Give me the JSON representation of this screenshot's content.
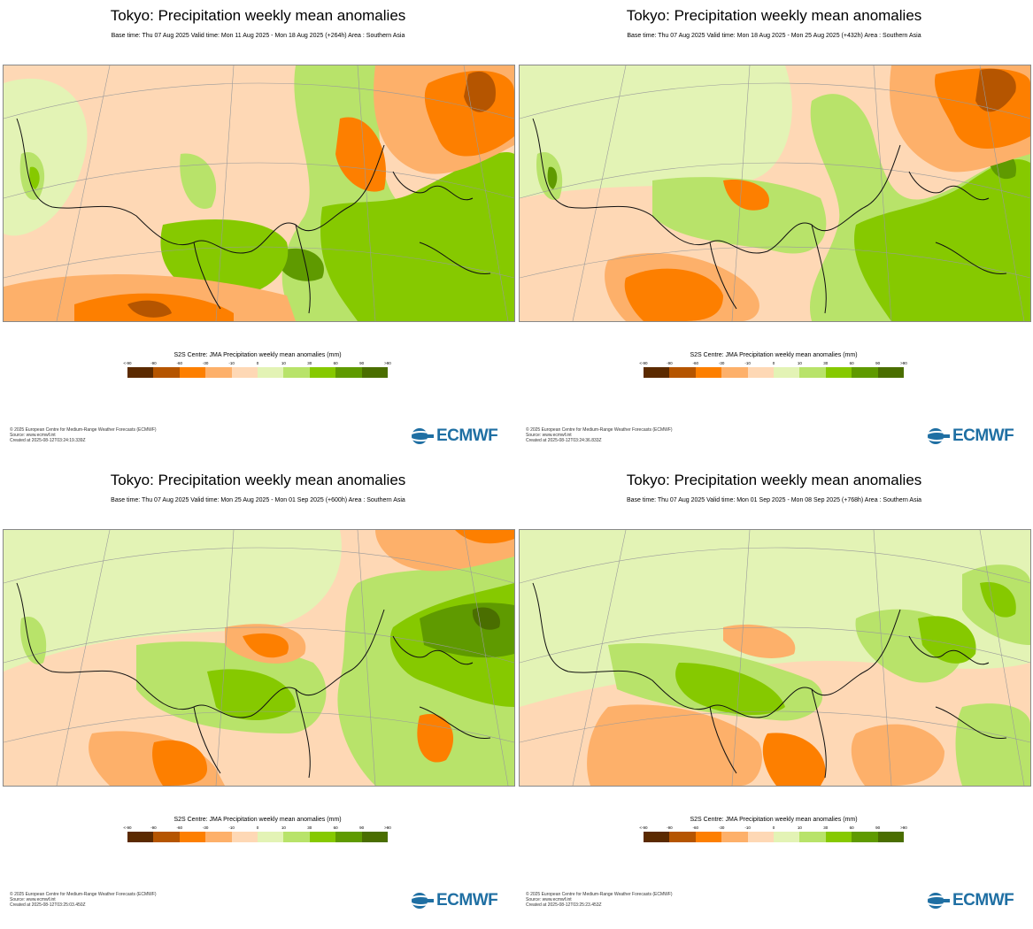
{
  "colors": {
    "scale": [
      "#5b2a00",
      "#b55500",
      "#fd7f00",
      "#fdb06a",
      "#fed8b5",
      "#e3f3b5",
      "#b8e36a",
      "#86c900",
      "#5f9a00",
      "#4a6e00"
    ],
    "coast": "#111111",
    "border": "#8a5c50",
    "grid": "#9a9a9a",
    "brand": "#1f6fa3"
  },
  "legend": {
    "title": "S2S Centre: JMA Precipitation weekly mean anomalies (mm)",
    "ticks": [
      "<-90",
      "-90",
      "-60",
      "-30",
      "-10",
      "0",
      "10",
      "30",
      "60",
      "90",
      ">90"
    ]
  },
  "logo": {
    "text": "ECMWF",
    "icon": "ecmwf-globe-icon"
  },
  "panels": [
    {
      "title": "Tokyo: Precipitation weekly mean anomalies",
      "subtitle": "Base time: Thu 07 Aug 2025 Valid time: Mon 11 Aug 2025 - Mon 18 Aug 2025 (+264h) Area : Southern Asia",
      "footer": [
        "© 2025 European Centre for Medium-Range Weather Forecasts (ECMWF)",
        "Source: www.ecmwf.int",
        "Created at 2025-08-12T03:24:19.339Z"
      ]
    },
    {
      "title": "Tokyo: Precipitation weekly mean anomalies",
      "subtitle": "Base time: Thu 07 Aug 2025 Valid time: Mon 18 Aug 2025 - Mon 25 Aug 2025 (+432h) Area : Southern Asia",
      "footer": [
        "© 2025 European Centre for Medium-Range Weather Forecasts (ECMWF)",
        "Source: www.ecmwf.int",
        "Created at 2025-08-12T03:24:36.833Z"
      ]
    },
    {
      "title": "Tokyo: Precipitation weekly mean anomalies",
      "subtitle": "Base time: Thu 07 Aug 2025 Valid time: Mon 25 Aug 2025 - Mon 01 Sep 2025 (+600h) Area : Southern Asia",
      "footer": [
        "© 2025 European Centre for Medium-Range Weather Forecasts (ECMWF)",
        "Source: www.ecmwf.int",
        "Created at 2025-08-12T03:25:03.450Z"
      ]
    },
    {
      "title": "Tokyo: Precipitation weekly mean anomalies",
      "subtitle": "Base time: Thu 07 Aug 2025 Valid time: Mon 01 Sep 2025 - Mon 08 Sep 2025 (+768h) Area : Southern Asia",
      "footer": [
        "© 2025 European Centre for Medium-Range Weather Forecasts (ECMWF)",
        "Source: www.ecmwf.int",
        "Created at 2025-08-12T03:25:23.453Z"
      ]
    }
  ]
}
